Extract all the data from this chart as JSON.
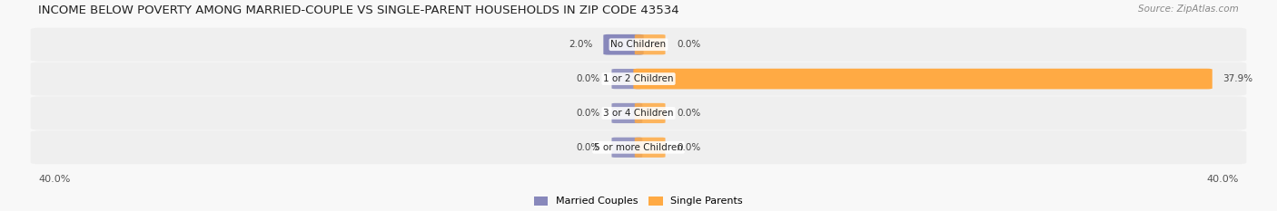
{
  "title": "INCOME BELOW POVERTY AMONG MARRIED-COUPLE VS SINGLE-PARENT HOUSEHOLDS IN ZIP CODE 43534",
  "source": "Source: ZipAtlas.com",
  "categories": [
    "No Children",
    "1 or 2 Children",
    "3 or 4 Children",
    "5 or more Children"
  ],
  "married_values": [
    2.0,
    0.0,
    0.0,
    0.0
  ],
  "single_values": [
    0.0,
    37.9,
    0.0,
    0.0
  ],
  "married_color": "#8888bb",
  "single_color": "#ffaa44",
  "axis_max": 40.0,
  "left_label": "40.0%",
  "right_label": "40.0%",
  "legend_married": "Married Couples",
  "legend_single": "Single Parents",
  "title_fontsize": 9.5,
  "label_fontsize": 8,
  "source_fontsize": 7.5,
  "category_fontsize": 7.5,
  "value_fontsize": 7.5,
  "row_color": "#efefef",
  "bg_color": "#f8f8f8"
}
